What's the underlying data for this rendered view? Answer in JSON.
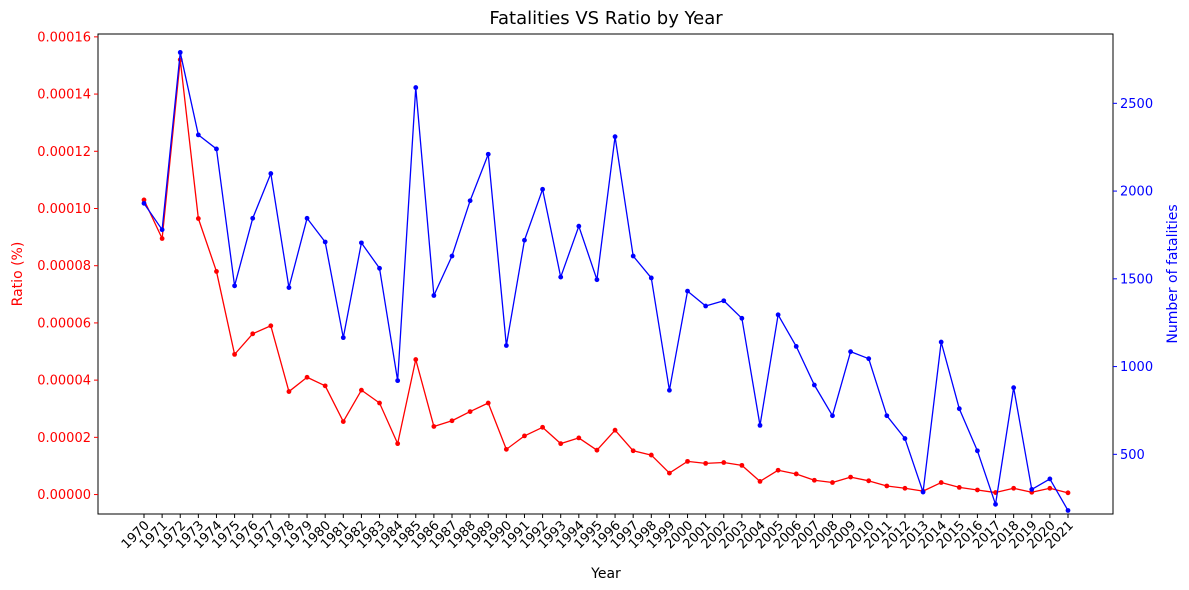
{
  "chart_data": {
    "type": "line",
    "title": "Fatalities VS Ratio by Year",
    "xlabel": "Year",
    "ylabel_left": "Ratio (%)",
    "ylabel_right": "Number of fatalities",
    "x": [
      "1970",
      "1971",
      "1972",
      "1973",
      "1974",
      "1975",
      "1976",
      "1977",
      "1978",
      "1979",
      "1980",
      "1981",
      "1982",
      "1983",
      "1984",
      "1985",
      "1986",
      "1987",
      "1988",
      "1989",
      "1990",
      "1991",
      "1992",
      "1993",
      "1994",
      "1995",
      "1996",
      "1997",
      "1998",
      "1999",
      "2000",
      "2001",
      "2002",
      "2003",
      "2004",
      "2005",
      "2006",
      "2007",
      "2008",
      "2009",
      "2010",
      "2011",
      "2012",
      "2013",
      "2014",
      "2015",
      "2016",
      "2017",
      "2018",
      "2019",
      "2020",
      "2021"
    ],
    "left_yticks": [
      "0.00000",
      "0.00002",
      "0.00004",
      "0.00006",
      "0.00008",
      "0.00010",
      "0.00012",
      "0.00014",
      "0.00016"
    ],
    "right_yticks": [
      "500",
      "1000",
      "1500",
      "2000",
      "2500"
    ],
    "left_ylim": [
      -6.8e-06,
      0.000161
    ],
    "right_ylim": [
      160,
      2895
    ],
    "grid": false,
    "series": [
      {
        "axis": "left",
        "color": "#ff0000",
        "values": [
          0.000103,
          8.95e-05,
          0.000152,
          9.65e-05,
          7.8e-05,
          4.9e-05,
          5.62e-05,
          5.9e-05,
          3.6e-05,
          4.1e-05,
          3.8e-05,
          2.55e-05,
          3.65e-05,
          3.2e-05,
          1.78e-05,
          4.72e-05,
          2.38e-05,
          2.58e-05,
          2.9e-05,
          3.2e-05,
          1.58e-05,
          2.05e-05,
          2.35e-05,
          1.78e-05,
          1.98e-05,
          1.55e-05,
          2.25e-05,
          1.53e-05,
          1.38e-05,
          7.5e-06,
          1.16e-05,
          1.09e-05,
          1.12e-05,
          1.02e-05,
          4.6e-06,
          8.5e-06,
          7.2e-06,
          5e-06,
          4.2e-06,
          6.1e-06,
          4.8e-06,
          3e-06,
          2.2e-06,
          1.2e-06,
          4.2e-06,
          2.5e-06,
          1.6e-06,
          7e-07,
          2.2e-06,
          8e-07,
          2.2e-06,
          6e-07
        ]
      },
      {
        "axis": "right",
        "color": "#0000ff",
        "values": [
          1930,
          1780,
          2790,
          2320,
          2240,
          1460,
          1845,
          2100,
          1450,
          1845,
          1710,
          1165,
          1705,
          1560,
          920,
          2590,
          1405,
          1630,
          1945,
          2210,
          1120,
          1720,
          2010,
          1510,
          1800,
          1495,
          2310,
          1630,
          1505,
          865,
          1430,
          1345,
          1375,
          1275,
          665,
          1295,
          1115,
          895,
          720,
          1085,
          1045,
          720,
          590,
          285,
          1140,
          760,
          520,
          215,
          880,
          300,
          360,
          180
        ]
      }
    ]
  }
}
